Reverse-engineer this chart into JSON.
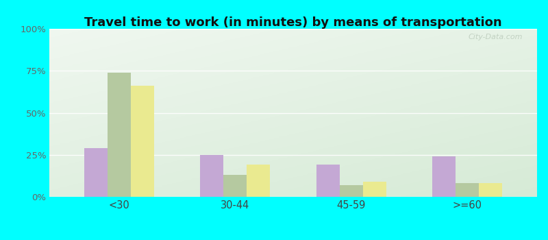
{
  "title": "Travel time to work (in minutes) by means of transportation",
  "categories": [
    "<30",
    "30-44",
    "45-59",
    ">=60"
  ],
  "series": {
    "Public transportation - Colorado": [
      29,
      25,
      19,
      24
    ],
    "Other means - Ordway": [
      74,
      13,
      7,
      8
    ],
    "Other means - Colorado": [
      66,
      19,
      9,
      8
    ]
  },
  "colors": {
    "Public transportation - Colorado": "#c4a8d4",
    "Other means - Ordway": "#b5c9a0",
    "Other means - Colorado": "#eaea90"
  },
  "ylim": [
    0,
    100
  ],
  "yticks": [
    0,
    25,
    50,
    75,
    100
  ],
  "ytick_labels": [
    "0%",
    "25%",
    "50%",
    "75%",
    "100%"
  ],
  "outer_background": "#00ffff",
  "title_fontsize": 13,
  "bar_width": 0.2,
  "legend_fontsize": 9
}
